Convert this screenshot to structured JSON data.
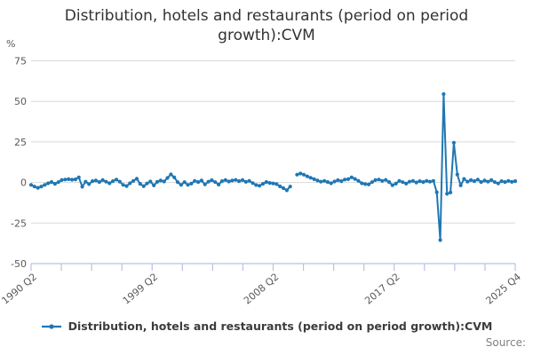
{
  "title": "Distribution, hotels and restaurants (period on period growth):CVM",
  "percent_label": "%",
  "source_label": "Source:",
  "legend": {
    "label": "Distribution, hotels and restaurants (period on period growth):CVM"
  },
  "colors": {
    "line": "#1f77b4",
    "grid": "#d9d9d9",
    "axis": "#b4c4de",
    "tick_text": "#595959",
    "title_text": "#333333",
    "source_text": "#7f7f7f"
  },
  "chart_data": {
    "type": "line",
    "title": "Distribution, hotels and restaurants (period on period growth):CVM",
    "xlabel": "",
    "ylabel": "%",
    "ylim": [
      -50,
      75
    ],
    "yticks": [
      75,
      50,
      25,
      0,
      -25,
      -50
    ],
    "grid": "horizontal",
    "legend_position": "bottom",
    "x_start": "1990 Q2",
    "x_end": "2025 Q4",
    "x_frequency": "quarterly",
    "xtick_labels": [
      "1990 Q2",
      "1999 Q2",
      "2008 Q2",
      "2017 Q2",
      "2025 Q4"
    ],
    "xtick_label_positions": [
      0,
      4,
      8,
      12,
      16
    ],
    "minor_tick_count": 17,
    "series": [
      {
        "name": "Distribution, hotels and restaurants (period on period growth):CVM",
        "values": [
          -1.5,
          -2.5,
          -3.3,
          -2.5,
          -1.5,
          -0.5,
          0.3,
          -0.8,
          0.2,
          1.5,
          1.8,
          2.0,
          1.7,
          1.9,
          3.2,
          -2.6,
          0.5,
          -1.0,
          0.8,
          1.2,
          0.3,
          1.5,
          0.5,
          -0.5,
          0.8,
          1.8,
          0.5,
          -1.5,
          -2.2,
          -0.5,
          1.0,
          2.3,
          -0.8,
          -2.3,
          -0.6,
          0.6,
          -1.8,
          0.4,
          1.2,
          0.6,
          2.8,
          5.0,
          3.1,
          0.2,
          -1.5,
          0.2,
          -1.5,
          -0.7,
          1.0,
          0.3,
          1.2,
          -1.2,
          0.5,
          1.4,
          0.2,
          -1.3,
          0.8,
          1.5,
          0.6,
          1.2,
          1.6,
          0.8,
          1.5,
          0.4,
          1.0,
          -0.4,
          -1.6,
          -2.0,
          -0.8,
          0.3,
          -0.3,
          -0.6,
          -1.0,
          -2.4,
          -3.5,
          -4.8,
          -2.5,
          null,
          4.8,
          5.5,
          4.8,
          3.8,
          2.9,
          2.0,
          1.2,
          0.5,
          1.0,
          0.3,
          -0.5,
          0.6,
          1.4,
          0.8,
          1.8,
          2.0,
          3.2,
          2.2,
          1.0,
          -0.5,
          -1.0,
          -1.2,
          0.2,
          1.5,
          1.8,
          1.0,
          1.6,
          0.3,
          -1.7,
          -0.7,
          1.0,
          0.2,
          -0.7,
          0.5,
          1.0,
          0.0,
          0.8,
          0.3,
          1.0,
          0.5,
          1.0,
          -6.0,
          -35.5,
          54.5,
          -7.0,
          -6.2,
          24.5,
          4.9,
          -1.8,
          2.2,
          0.5,
          1.5,
          0.8,
          1.8,
          0.3,
          1.2,
          0.5,
          1.5,
          0.2,
          -0.6,
          0.8,
          0.3,
          1.0,
          0.4,
          0.8
        ]
      }
    ]
  }
}
